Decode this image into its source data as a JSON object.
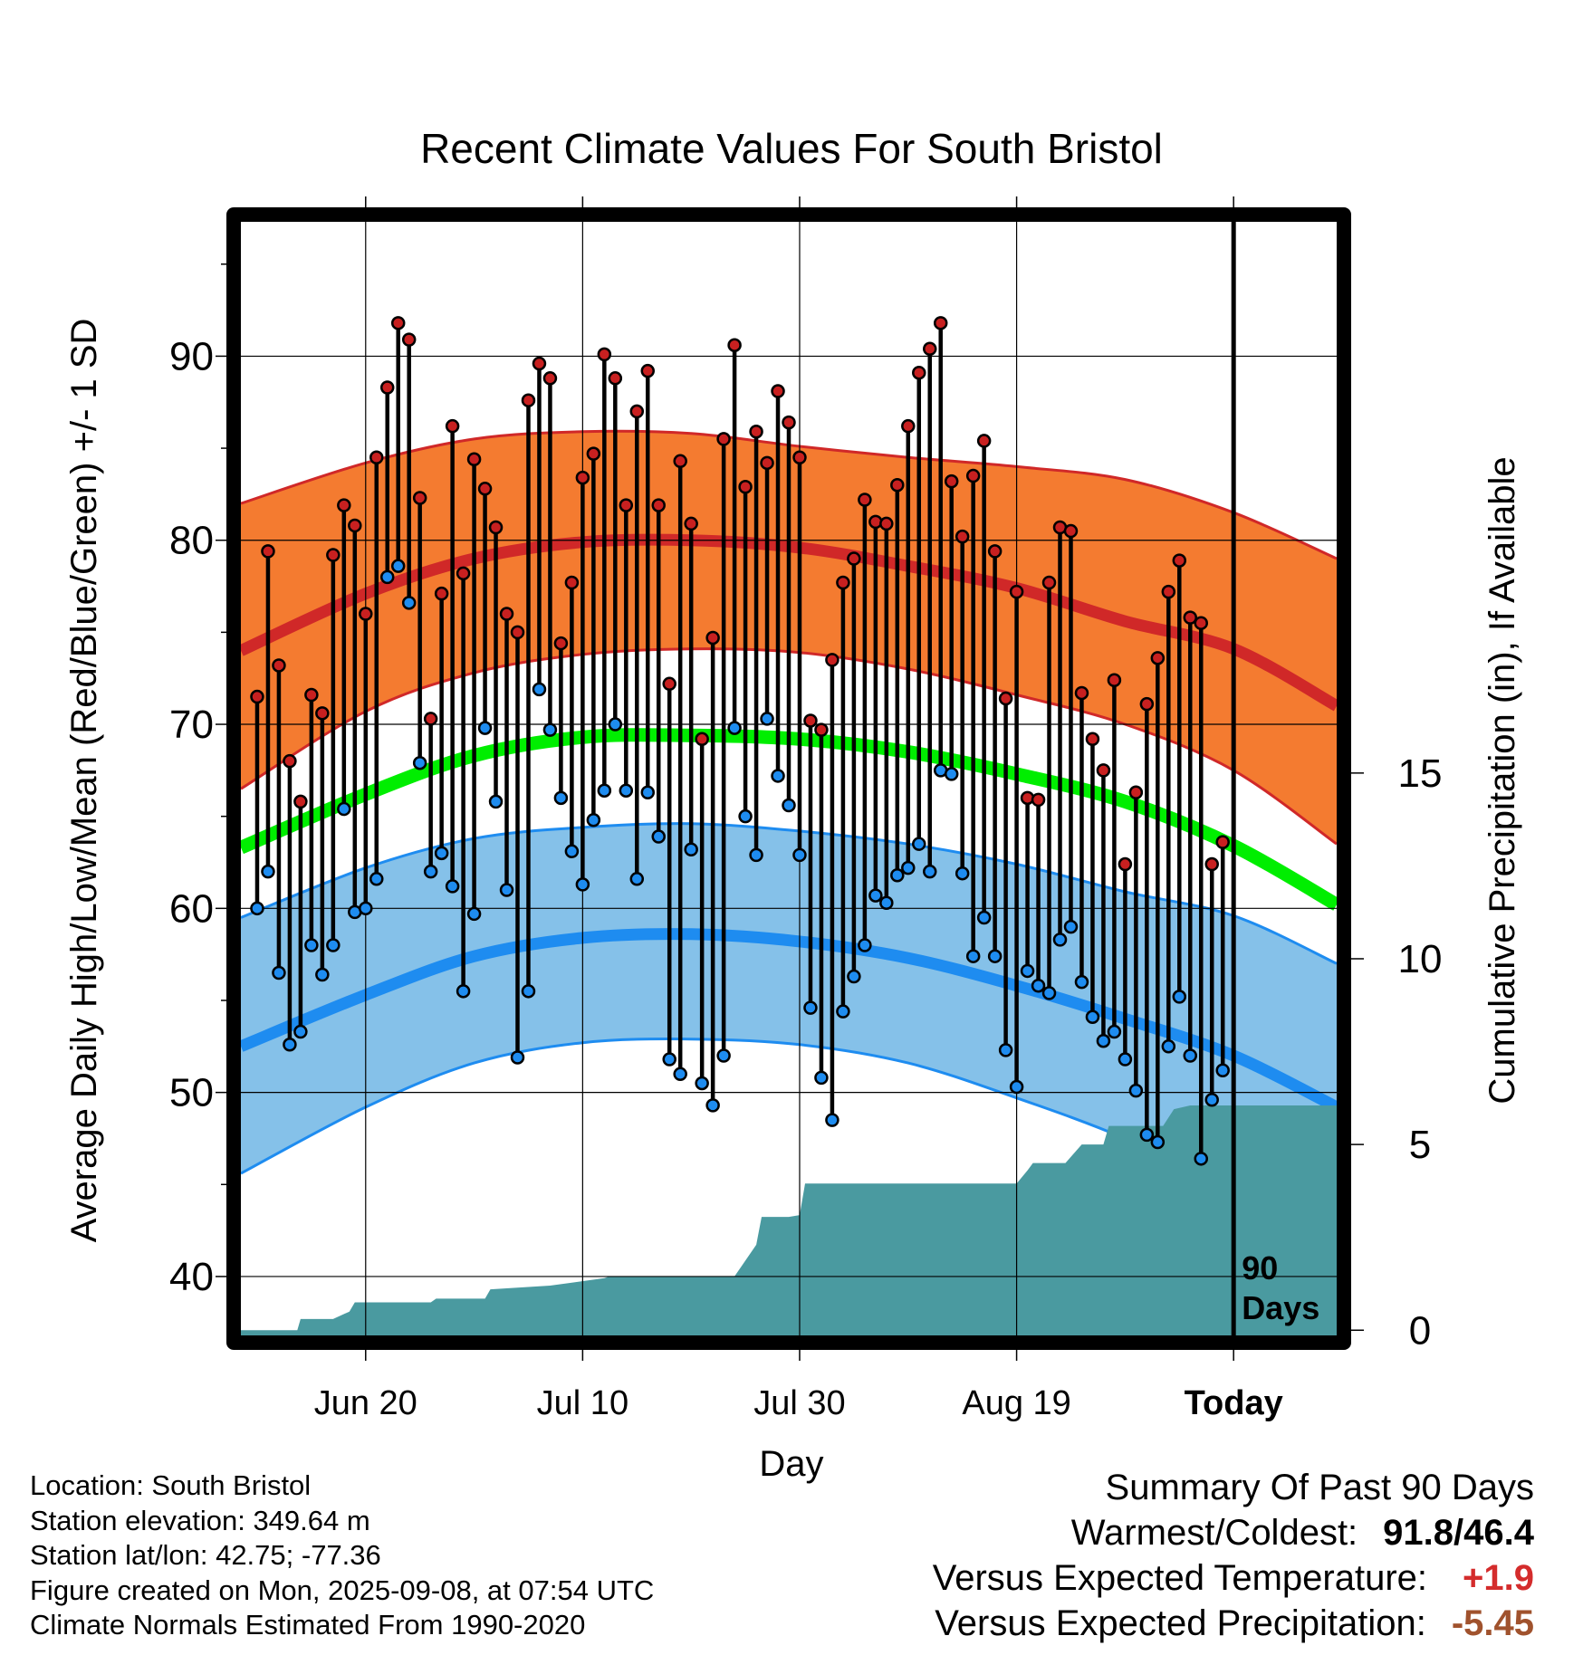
{
  "page": {
    "title": "Recent Climate Values For South Bristol"
  },
  "info": {
    "location": "Location: South Bristol",
    "elevation": "Station elevation: 349.64 m",
    "latlon": "Station lat/lon: 42.75; -77.36",
    "created": "Figure created on Mon, 2025-09-08, at 07:54 UTC",
    "normals": "Climate Normals Estimated From 1990-2020"
  },
  "summary": {
    "heading": "Summary Of Past 90 Days",
    "warmest_coldest_label": "Warmest/Coldest:",
    "warmest_coldest_value": "91.8/46.4",
    "temp_label": "Versus Expected Temperature:",
    "temp_value": "+1.9",
    "temp_color": "#d42c2c",
    "precip_label": "Versus Expected Precipitation:",
    "precip_value": "-5.45",
    "precip_color": "#a0522d"
  },
  "chart_data": {
    "type": "line",
    "title": "Recent Climate Values For South Bristol",
    "xlabel": "Day",
    "ylabel": "Average Daily High/Low/Mean (Red/Blue/Green) +/- 1 SD",
    "y2label": "Cumulative Precipitation (in), If Available",
    "x_range_days": [
      -91.5,
      9.5
    ],
    "ylim": [
      36.8,
      97.3
    ],
    "y2lim": [
      -0.14,
      29.84
    ],
    "y_ticks": [
      40,
      50,
      60,
      70,
      80,
      90
    ],
    "y2_ticks": [
      0,
      5,
      10,
      15
    ],
    "x_ticks": [
      {
        "day": -80,
        "label": "Jun 20"
      },
      {
        "day": -60,
        "label": "Jul 10"
      },
      {
        "day": -40,
        "label": "Jul 30"
      },
      {
        "day": -20,
        "label": "Aug 19"
      },
      {
        "day": 0,
        "label": "Today"
      }
    ],
    "grid": true,
    "today_marker": {
      "day": 0,
      "label_line1": "90",
      "label_line2": "Days"
    },
    "colors": {
      "high_band": "#f47b30",
      "high_line": "#d02828",
      "low_band": "#85c1e9",
      "low_line": "#1e8cf0",
      "mean_line": "#00ee00",
      "precip_fill": "#4a9aa0",
      "high_dot": "#c82020",
      "low_dot": "#1e8cf0"
    },
    "normals_days": [
      -91.5,
      -80,
      -70,
      -60,
      -50,
      -40,
      -30,
      -20,
      -10,
      0,
      9.5
    ],
    "normal_high_mean": [
      74.0,
      77.1,
      79.0,
      79.9,
      80.0,
      79.6,
      78.6,
      77.4,
      75.6,
      74.1,
      71.0
    ],
    "normal_high_upper": [
      82.0,
      84.2,
      85.5,
      85.9,
      85.8,
      85.1,
      84.5,
      84.0,
      83.3,
      81.5,
      79.0
    ],
    "normal_high_lower": [
      66.5,
      70.7,
      72.8,
      73.8,
      74.1,
      73.9,
      73.0,
      71.6,
      70.0,
      67.5,
      63.5
    ],
    "normal_mean": [
      63.3,
      66.2,
      68.3,
      69.3,
      69.4,
      69.2,
      68.5,
      67.3,
      65.8,
      63.4,
      60.2
    ],
    "normal_low_mean": [
      52.5,
      55.3,
      57.4,
      58.4,
      58.6,
      58.2,
      57.3,
      55.8,
      54.0,
      52.0,
      49.2
    ],
    "normal_low_upper": [
      59.5,
      62.2,
      63.8,
      64.4,
      64.6,
      64.2,
      63.5,
      62.4,
      60.9,
      59.6,
      57.0
    ],
    "normal_low_lower": [
      45.6,
      49.2,
      51.6,
      52.7,
      52.9,
      52.6,
      51.6,
      49.7,
      47.5,
      44.7,
      43.0
    ],
    "highs": [
      71.5,
      79.4,
      73.2,
      68.0,
      65.8,
      71.6,
      70.6,
      79.2,
      81.9,
      80.8,
      76.0,
      84.5,
      88.3,
      91.8,
      90.9,
      82.3,
      70.3,
      77.1,
      86.2,
      78.2,
      84.4,
      82.8,
      80.7,
      76.0,
      75.0,
      87.6,
      89.6,
      88.8,
      74.4,
      77.7,
      83.4,
      84.7,
      90.1,
      88.8,
      81.9,
      87.0,
      89.2,
      81.9,
      72.2,
      84.3,
      80.9,
      69.2,
      74.7,
      85.5,
      90.6,
      82.9,
      85.9,
      84.2,
      88.1,
      86.4,
      84.5,
      70.2,
      69.7,
      73.5,
      77.7,
      79.0,
      82.2,
      81.0,
      80.9,
      83.0,
      86.2,
      89.1,
      90.4,
      91.8,
      83.2,
      80.2,
      83.5,
      85.4,
      79.4,
      71.4,
      77.2,
      66.0,
      65.9,
      77.7,
      80.7,
      80.5,
      71.7,
      69.2,
      67.5,
      72.4,
      62.4,
      66.3,
      71.1,
      73.6,
      77.2,
      78.9,
      75.8,
      75.5,
      62.4,
      63.6
    ],
    "lows": [
      60.0,
      62.0,
      56.5,
      52.6,
      53.3,
      58.0,
      56.4,
      58.0,
      65.4,
      59.8,
      60.0,
      61.6,
      78.0,
      78.6,
      76.6,
      67.9,
      62.0,
      63.0,
      61.2,
      55.5,
      59.7,
      69.8,
      65.8,
      61.0,
      51.9,
      55.5,
      71.9,
      69.7,
      66.0,
      63.1,
      61.3,
      64.8,
      66.4,
      70.0,
      66.4,
      61.6,
      66.3,
      63.9,
      51.8,
      51.0,
      63.2,
      50.5,
      49.3,
      52.0,
      69.8,
      65.0,
      62.9,
      70.3,
      67.2,
      65.6,
      62.9,
      54.6,
      50.8,
      48.5,
      54.4,
      56.3,
      58.0,
      60.7,
      60.3,
      61.8,
      62.2,
      63.5,
      62.0,
      67.5,
      67.3,
      61.9,
      57.4,
      59.5,
      57.4,
      52.3,
      50.3,
      56.6,
      55.8,
      55.4,
      58.3,
      59.0,
      56.0,
      54.1,
      52.8,
      53.3,
      51.8,
      50.1,
      47.7,
      47.3,
      52.5,
      55.2,
      52.0,
      46.4,
      49.6,
      51.2
    ],
    "precip_days": [
      -91.5,
      -86.3,
      -86.0,
      -83.0,
      -81.5,
      -81.0,
      -74.0,
      -73.5,
      -69.0,
      -68.5,
      -63.0,
      -58.0,
      -57.5,
      -46.0,
      -44.0,
      -43.5,
      -41.0,
      -40.0,
      -39.5,
      -20.0,
      -19.0,
      -18.5,
      -15.5,
      -14.0,
      -12.0,
      -11.5,
      -6.5,
      -5.5,
      -4.0,
      -2.5,
      9.5
    ],
    "precip_values": [
      0,
      0,
      0.3,
      0.3,
      0.5,
      0.75,
      0.75,
      0.85,
      0.85,
      1.1,
      1.2,
      1.4,
      1.45,
      1.45,
      2.3,
      3.05,
      3.05,
      3.1,
      3.95,
      3.95,
      4.3,
      4.5,
      4.5,
      5.0,
      5.0,
      5.5,
      5.5,
      5.95,
      6.05,
      6.05,
      6.05
    ]
  }
}
